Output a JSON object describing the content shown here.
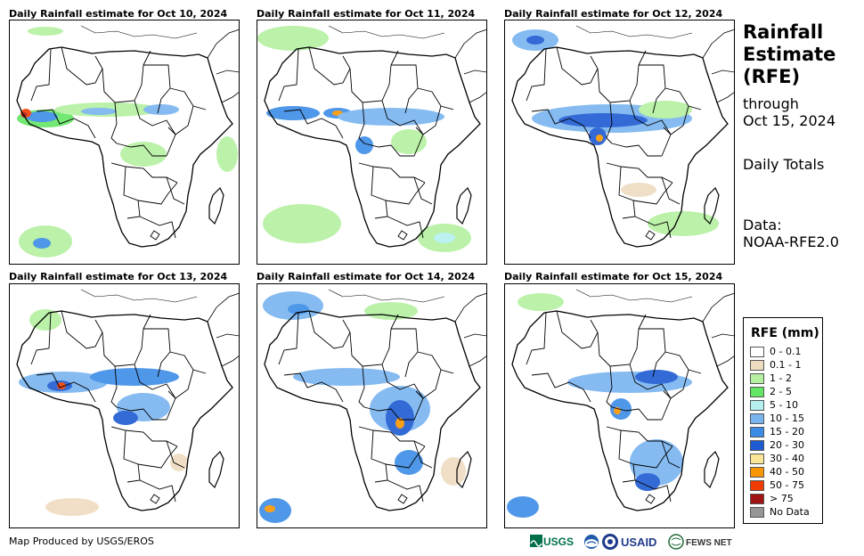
{
  "panels": [
    {
      "title": "Daily Rainfall estimate for Oct 10, 2024"
    },
    {
      "title": "Daily Rainfall estimate for Oct 11, 2024"
    },
    {
      "title": "Daily Rainfall estimate for Oct 12, 2024"
    },
    {
      "title": "Daily Rainfall estimate for Oct 13, 2024"
    },
    {
      "title": "Daily Rainfall estimate for Oct 14, 2024"
    },
    {
      "title": "Daily Rainfall estimate for Oct 15, 2024"
    }
  ],
  "sidebar": {
    "title_line1": "Rainfall",
    "title_line2": "Estimate",
    "title_line3": "(RFE)",
    "through_label": "through",
    "through_date": "Oct 15, 2024",
    "totals_label": "Daily Totals",
    "data_label": "Data:",
    "data_source": "NOAA-RFE2.0"
  },
  "legend": {
    "title": "RFE (mm)",
    "items": [
      {
        "label": "0 - 0.1",
        "color": "#ffffff"
      },
      {
        "label": "0.1 - 1",
        "color": "#eedcc0"
      },
      {
        "label": "1 - 2",
        "color": "#b4f0a0"
      },
      {
        "label": "2 - 5",
        "color": "#64e664"
      },
      {
        "label": "5 - 10",
        "color": "#b4f0f0"
      },
      {
        "label": "10 - 15",
        "color": "#78b4f0"
      },
      {
        "label": "15 - 20",
        "color": "#3c8ce6"
      },
      {
        "label": "20 - 30",
        "color": "#1e5ad2"
      },
      {
        "label": "30 - 40",
        "color": "#fae696"
      },
      {
        "label": "40 - 50",
        "color": "#fa9600"
      },
      {
        "label": "50 - 75",
        "color": "#f03c00"
      },
      {
        "label": "> 75",
        "color": "#a01414"
      },
      {
        "label": "No Data",
        "color": "#969696"
      }
    ]
  },
  "footer": {
    "credit": "Map Produced by USGS/EROS"
  },
  "logos": {
    "usgs": "USGS",
    "usaid": "USAID",
    "fewsnet": "FEWS NET"
  }
}
